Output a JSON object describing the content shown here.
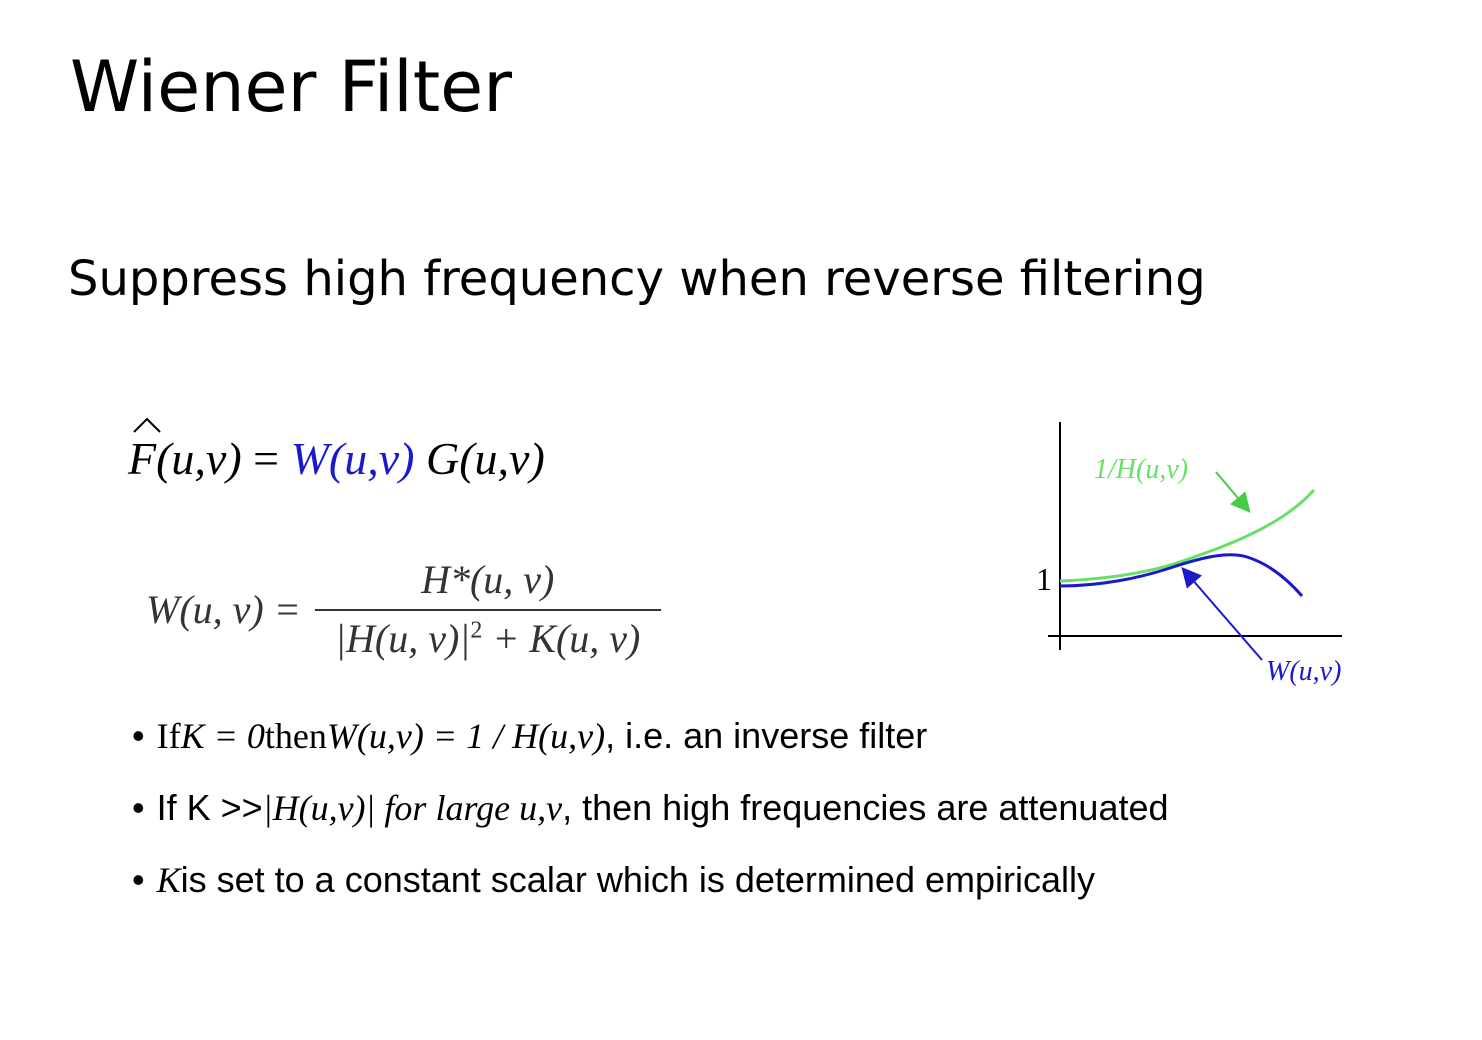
{
  "slide": {
    "title": "Wiener Filter",
    "subtitle": "Suppress high frequency when reverse filtering"
  },
  "equation1": {
    "lhs": "F(u,v)",
    "eq": " = ",
    "w": "W(u,v)",
    "g": " G(u,v)"
  },
  "equation2": {
    "lhs": "W(u, v) =",
    "numerator": "H*(u, v)",
    "denominator_a": "|H(u, v)|",
    "denominator_sup": "2",
    "denominator_b": " + K(u, v)"
  },
  "bullets": [
    {
      "marker": "•",
      "a": "If ",
      "b": "K = 0",
      "c": " then ",
      "d": "W(u,v) = 1 / H(u,v)",
      "e": ", i.e. an inverse filter"
    },
    {
      "marker": "•",
      "a": "If K >> ",
      "b": "|H(u,v)| for large u,v",
      "c": ", then high frequencies are attenuated"
    },
    {
      "marker": "•",
      "a": "K",
      "b": "  is set to a constant scalar which is determined empirically"
    }
  ],
  "plot": {
    "y_tick": "1",
    "label_inverse": "1/H(u,v)",
    "label_wiener": "W(u,v)",
    "colors": {
      "inverse": "#66e066",
      "wiener": "#1a1acc"
    }
  }
}
